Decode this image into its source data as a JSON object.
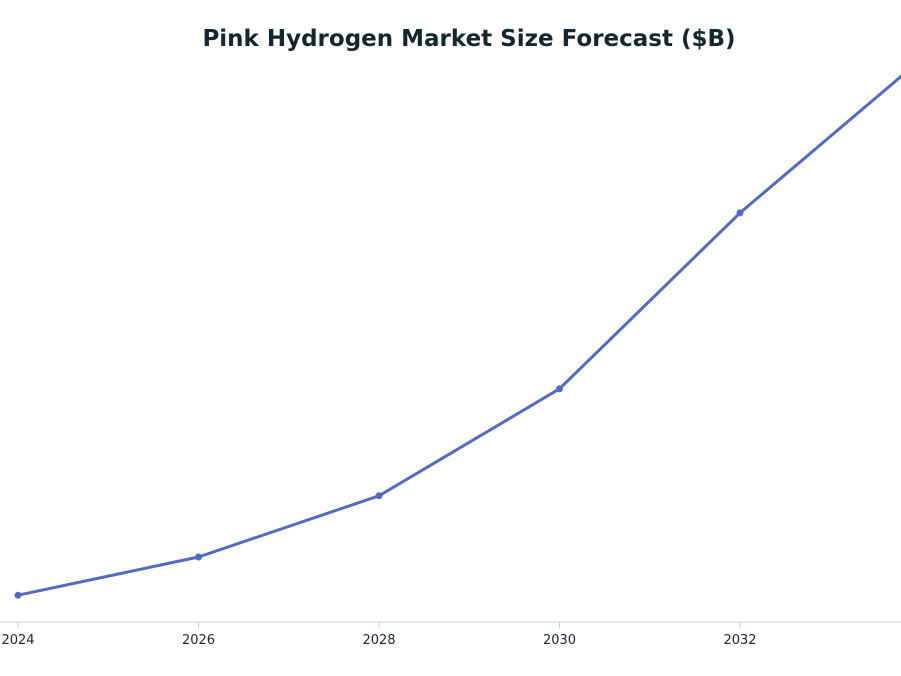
{
  "chart_data": {
    "type": "line",
    "title": "Pink Hydrogen Market Size Forecast ($B)",
    "xlabel": "",
    "ylabel": "",
    "x_ticks": [
      "2024",
      "2026",
      "2028",
      "2030",
      "2032"
    ],
    "xlim": [
      2024,
      2033.8
    ],
    "series": [
      {
        "color": "#536ac0",
        "x": [
          2024,
          2026,
          2028,
          2030,
          2032,
          2033.8
        ],
        "y": [
          0.5,
          1.0,
          1.8,
          3.2,
          5.5,
          7.3
        ]
      }
    ],
    "ylim": [
      0.15,
      7.5
    ],
    "grid": false,
    "legend": "none"
  }
}
